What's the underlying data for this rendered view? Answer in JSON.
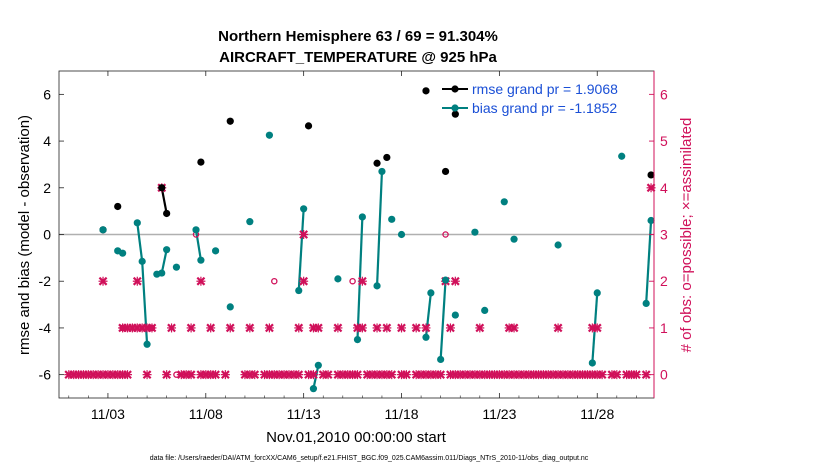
{
  "chart_data": {
    "type": "line",
    "title": "Northern Hemisphere 63 / 69 = 91.304%",
    "subtitle": "AIRCRAFT_TEMPERATURE @ 925 hPa",
    "xlabel": "Nov.01,2010 00:00:00 start",
    "ylabel": "rmse and bias (model - observation)",
    "y2label": "# of obs: o=possible; ×=assimilated",
    "footer": "data file: /Users/raeder/DAI/ATM_forcXX/CAM6_setup/f.e21.FHIST_BGC.f09_025.CAM6assim.011/Diags_NTrS_2010-11/obs_diag_output.nc",
    "xlim": [
      0.5,
      30.9
    ],
    "ylim": [
      -7,
      7
    ],
    "y2lim": [
      -0.5,
      6.5
    ],
    "x_ticks": [
      3,
      8,
      13,
      18,
      23,
      28
    ],
    "x_tick_labels": [
      "11/03",
      "11/08",
      "11/13",
      "11/18",
      "11/23",
      "11/28"
    ],
    "y_ticks": [
      -6,
      -4,
      -2,
      0,
      2,
      4,
      6
    ],
    "y_tick_labels": [
      "-6",
      "-4",
      "-2",
      "0",
      "2",
      "4",
      "6"
    ],
    "y2_ticks": [
      0,
      1,
      2,
      3,
      4,
      5,
      6
    ],
    "y2_tick_labels": [
      "0",
      "1",
      "2",
      "3",
      "4",
      "5",
      "6"
    ],
    "legend": [
      "rmse grand pr = 1.9068",
      "bias grand pr = -1.1852"
    ],
    "legend_position": "top-right",
    "colors": {
      "rmse": "#000000",
      "bias": "#008080",
      "obs": "#d0105a",
      "zero": "#b0b0b0",
      "legend_text": "#1a4fd6"
    },
    "series": [
      {
        "name": "rmse",
        "points": [
          [
            2.75,
            0.2
          ],
          [
            3.5,
            1.2
          ],
          [
            5.75,
            2.0
          ],
          [
            6.0,
            0.9
          ],
          [
            7.75,
            3.1
          ],
          [
            9.25,
            4.85
          ],
          [
            13.25,
            4.65
          ],
          [
            16.75,
            3.05
          ],
          [
            17.25,
            3.3
          ],
          [
            19.25,
            6.15
          ],
          [
            20.25,
            2.7
          ],
          [
            20.75,
            5.15
          ],
          [
            30.75,
            2.55
          ]
        ],
        "segments": [
          [
            [
              5.75,
              2.0
            ],
            [
              6.0,
              0.9
            ]
          ]
        ]
      },
      {
        "name": "bias",
        "points": [
          [
            2.75,
            0.2
          ],
          [
            3.5,
            -0.7
          ],
          [
            3.75,
            -0.8
          ],
          [
            4.5,
            0.5
          ],
          [
            4.75,
            -1.15
          ],
          [
            5.0,
            -4.7
          ],
          [
            5.5,
            -1.7
          ],
          [
            5.75,
            -1.65
          ],
          [
            6.0,
            -0.65
          ],
          [
            6.5,
            -1.4
          ],
          [
            7.5,
            0.2
          ],
          [
            7.75,
            -1.1
          ],
          [
            8.5,
            -0.7
          ],
          [
            9.25,
            -3.1
          ],
          [
            10.25,
            0.55
          ],
          [
            11.25,
            4.25
          ],
          [
            12.75,
            -2.4
          ],
          [
            13.0,
            1.1
          ],
          [
            13.5,
            -6.6
          ],
          [
            13.75,
            -5.6
          ],
          [
            14.75,
            -1.9
          ],
          [
            15.75,
            -4.5
          ],
          [
            16.0,
            0.75
          ],
          [
            16.75,
            -2.2
          ],
          [
            17.0,
            2.7
          ],
          [
            17.5,
            0.65
          ],
          [
            18.0,
            0.0
          ],
          [
            19.25,
            -4.4
          ],
          [
            19.5,
            -2.5
          ],
          [
            20.0,
            -5.35
          ],
          [
            20.25,
            -1.95
          ],
          [
            20.75,
            -3.45
          ],
          [
            21.75,
            0.1
          ],
          [
            22.25,
            -3.25
          ],
          [
            23.25,
            1.4
          ],
          [
            23.75,
            -0.2
          ],
          [
            26.0,
            -0.45
          ],
          [
            27.75,
            -5.5
          ],
          [
            28.0,
            -2.5
          ],
          [
            29.25,
            3.35
          ],
          [
            30.5,
            -2.95
          ],
          [
            30.75,
            0.6
          ]
        ],
        "segments": [
          [
            [
              4.5,
              0.5
            ],
            [
              4.75,
              -1.15
            ],
            [
              5.0,
              -4.7
            ]
          ],
          [
            [
              5.5,
              -1.7
            ],
            [
              5.75,
              -1.65
            ],
            [
              6.0,
              -0.65
            ]
          ],
          [
            [
              7.5,
              0.2
            ],
            [
              7.75,
              -1.1
            ]
          ],
          [
            [
              12.75,
              -2.4
            ],
            [
              13.0,
              1.1
            ]
          ],
          [
            [
              13.5,
              -6.6
            ],
            [
              13.75,
              -5.6
            ]
          ],
          [
            [
              15.75,
              -4.5
            ],
            [
              16.0,
              0.75
            ]
          ],
          [
            [
              16.75,
              -2.2
            ],
            [
              17.0,
              2.7
            ]
          ],
          [
            [
              19.25,
              -4.4
            ],
            [
              19.5,
              -2.5
            ]
          ],
          [
            [
              20.0,
              -5.35
            ],
            [
              20.25,
              -1.95
            ]
          ],
          [
            [
              27.75,
              -5.5
            ],
            [
              28.0,
              -2.5
            ]
          ],
          [
            [
              30.5,
              -2.95
            ],
            [
              30.75,
              0.6
            ]
          ]
        ]
      }
    ],
    "obs_possible_extra": [
      [
        6.5,
        0
      ],
      [
        11.5,
        2
      ],
      [
        15.5,
        2
      ],
      [
        20.25,
        3
      ]
    ],
    "obs_assimilated": [
      [
        1.0,
        0
      ],
      [
        1.25,
        0
      ],
      [
        1.5,
        0
      ],
      [
        1.75,
        0
      ],
      [
        2.0,
        0
      ],
      [
        2.25,
        0
      ],
      [
        2.5,
        0
      ],
      [
        2.75,
        0
      ],
      [
        3.0,
        0
      ],
      [
        3.25,
        0
      ],
      [
        3.5,
        0
      ],
      [
        3.75,
        0
      ],
      [
        4.0,
        0
      ],
      [
        5.0,
        0
      ],
      [
        6.0,
        0
      ],
      [
        6.75,
        0
      ],
      [
        7.0,
        0
      ],
      [
        7.25,
        0
      ],
      [
        7.75,
        0
      ],
      [
        8.0,
        0
      ],
      [
        8.25,
        0
      ],
      [
        8.5,
        0
      ],
      [
        9.0,
        0
      ],
      [
        10.0,
        0
      ],
      [
        10.25,
        0
      ],
      [
        10.5,
        0
      ],
      [
        11.0,
        0
      ],
      [
        11.25,
        0
      ],
      [
        11.5,
        0
      ],
      [
        11.75,
        0
      ],
      [
        12.0,
        0
      ],
      [
        12.25,
        0
      ],
      [
        12.5,
        0
      ],
      [
        12.75,
        0
      ],
      [
        13.25,
        0
      ],
      [
        13.5,
        0
      ],
      [
        14.0,
        0
      ],
      [
        14.25,
        0
      ],
      [
        14.75,
        0
      ],
      [
        15.0,
        0
      ],
      [
        15.25,
        0
      ],
      [
        15.5,
        0
      ],
      [
        15.75,
        0
      ],
      [
        16.25,
        0
      ],
      [
        16.5,
        0
      ],
      [
        16.75,
        0
      ],
      [
        17.0,
        0
      ],
      [
        17.25,
        0
      ],
      [
        17.5,
        0
      ],
      [
        18.0,
        0
      ],
      [
        18.25,
        0
      ],
      [
        18.75,
        0
      ],
      [
        19.0,
        0
      ],
      [
        19.25,
        0
      ],
      [
        19.5,
        0
      ],
      [
        19.75,
        0
      ],
      [
        20.0,
        0
      ],
      [
        20.5,
        0
      ],
      [
        20.75,
        0
      ],
      [
        21.0,
        0
      ],
      [
        21.25,
        0
      ],
      [
        21.5,
        0
      ],
      [
        21.75,
        0
      ],
      [
        22.0,
        0
      ],
      [
        22.25,
        0
      ],
      [
        22.5,
        0
      ],
      [
        22.75,
        0
      ],
      [
        23.0,
        0
      ],
      [
        23.25,
        0
      ],
      [
        23.5,
        0
      ],
      [
        23.75,
        0
      ],
      [
        24.0,
        0
      ],
      [
        24.25,
        0
      ],
      [
        24.5,
        0
      ],
      [
        24.75,
        0
      ],
      [
        25.0,
        0
      ],
      [
        25.25,
        0
      ],
      [
        25.5,
        0
      ],
      [
        25.75,
        0
      ],
      [
        26.0,
        0
      ],
      [
        26.25,
        0
      ],
      [
        26.5,
        0
      ],
      [
        26.75,
        0
      ],
      [
        27.0,
        0
      ],
      [
        27.25,
        0
      ],
      [
        27.5,
        0
      ],
      [
        27.75,
        0
      ],
      [
        28.0,
        0
      ],
      [
        28.25,
        0
      ],
      [
        28.75,
        0
      ],
      [
        29.0,
        0
      ],
      [
        29.5,
        0
      ],
      [
        29.75,
        0
      ],
      [
        30.0,
        0
      ],
      [
        30.5,
        0
      ],
      [
        3.75,
        1
      ],
      [
        4.0,
        1
      ],
      [
        4.25,
        1
      ],
      [
        4.5,
        1
      ],
      [
        4.75,
        1
      ],
      [
        5.0,
        1
      ],
      [
        5.25,
        1
      ],
      [
        6.25,
        1
      ],
      [
        7.25,
        1
      ],
      [
        8.25,
        1
      ],
      [
        9.25,
        1
      ],
      [
        10.25,
        1
      ],
      [
        11.25,
        1
      ],
      [
        12.75,
        1
      ],
      [
        13.5,
        1
      ],
      [
        13.75,
        1
      ],
      [
        14.75,
        1
      ],
      [
        15.75,
        1
      ],
      [
        16.0,
        1
      ],
      [
        16.75,
        1
      ],
      [
        17.25,
        1
      ],
      [
        18.0,
        1
      ],
      [
        18.75,
        1
      ],
      [
        19.25,
        1
      ],
      [
        20.5,
        1
      ],
      [
        22.0,
        1
      ],
      [
        23.5,
        1
      ],
      [
        23.75,
        1
      ],
      [
        26.0,
        1
      ],
      [
        27.75,
        1
      ],
      [
        28.0,
        1
      ],
      [
        2.75,
        2
      ],
      [
        4.5,
        2
      ],
      [
        7.75,
        2
      ],
      [
        13.0,
        2
      ],
      [
        16.0,
        2
      ],
      [
        20.25,
        2
      ],
      [
        20.75,
        2
      ],
      [
        13.0,
        3
      ],
      [
        5.75,
        4
      ],
      [
        30.75,
        4
      ]
    ],
    "obs_possible_only_within_assim": [
      [
        3.75,
        1
      ],
      [
        5.25,
        1
      ],
      [
        7.5,
        3
      ]
    ]
  }
}
